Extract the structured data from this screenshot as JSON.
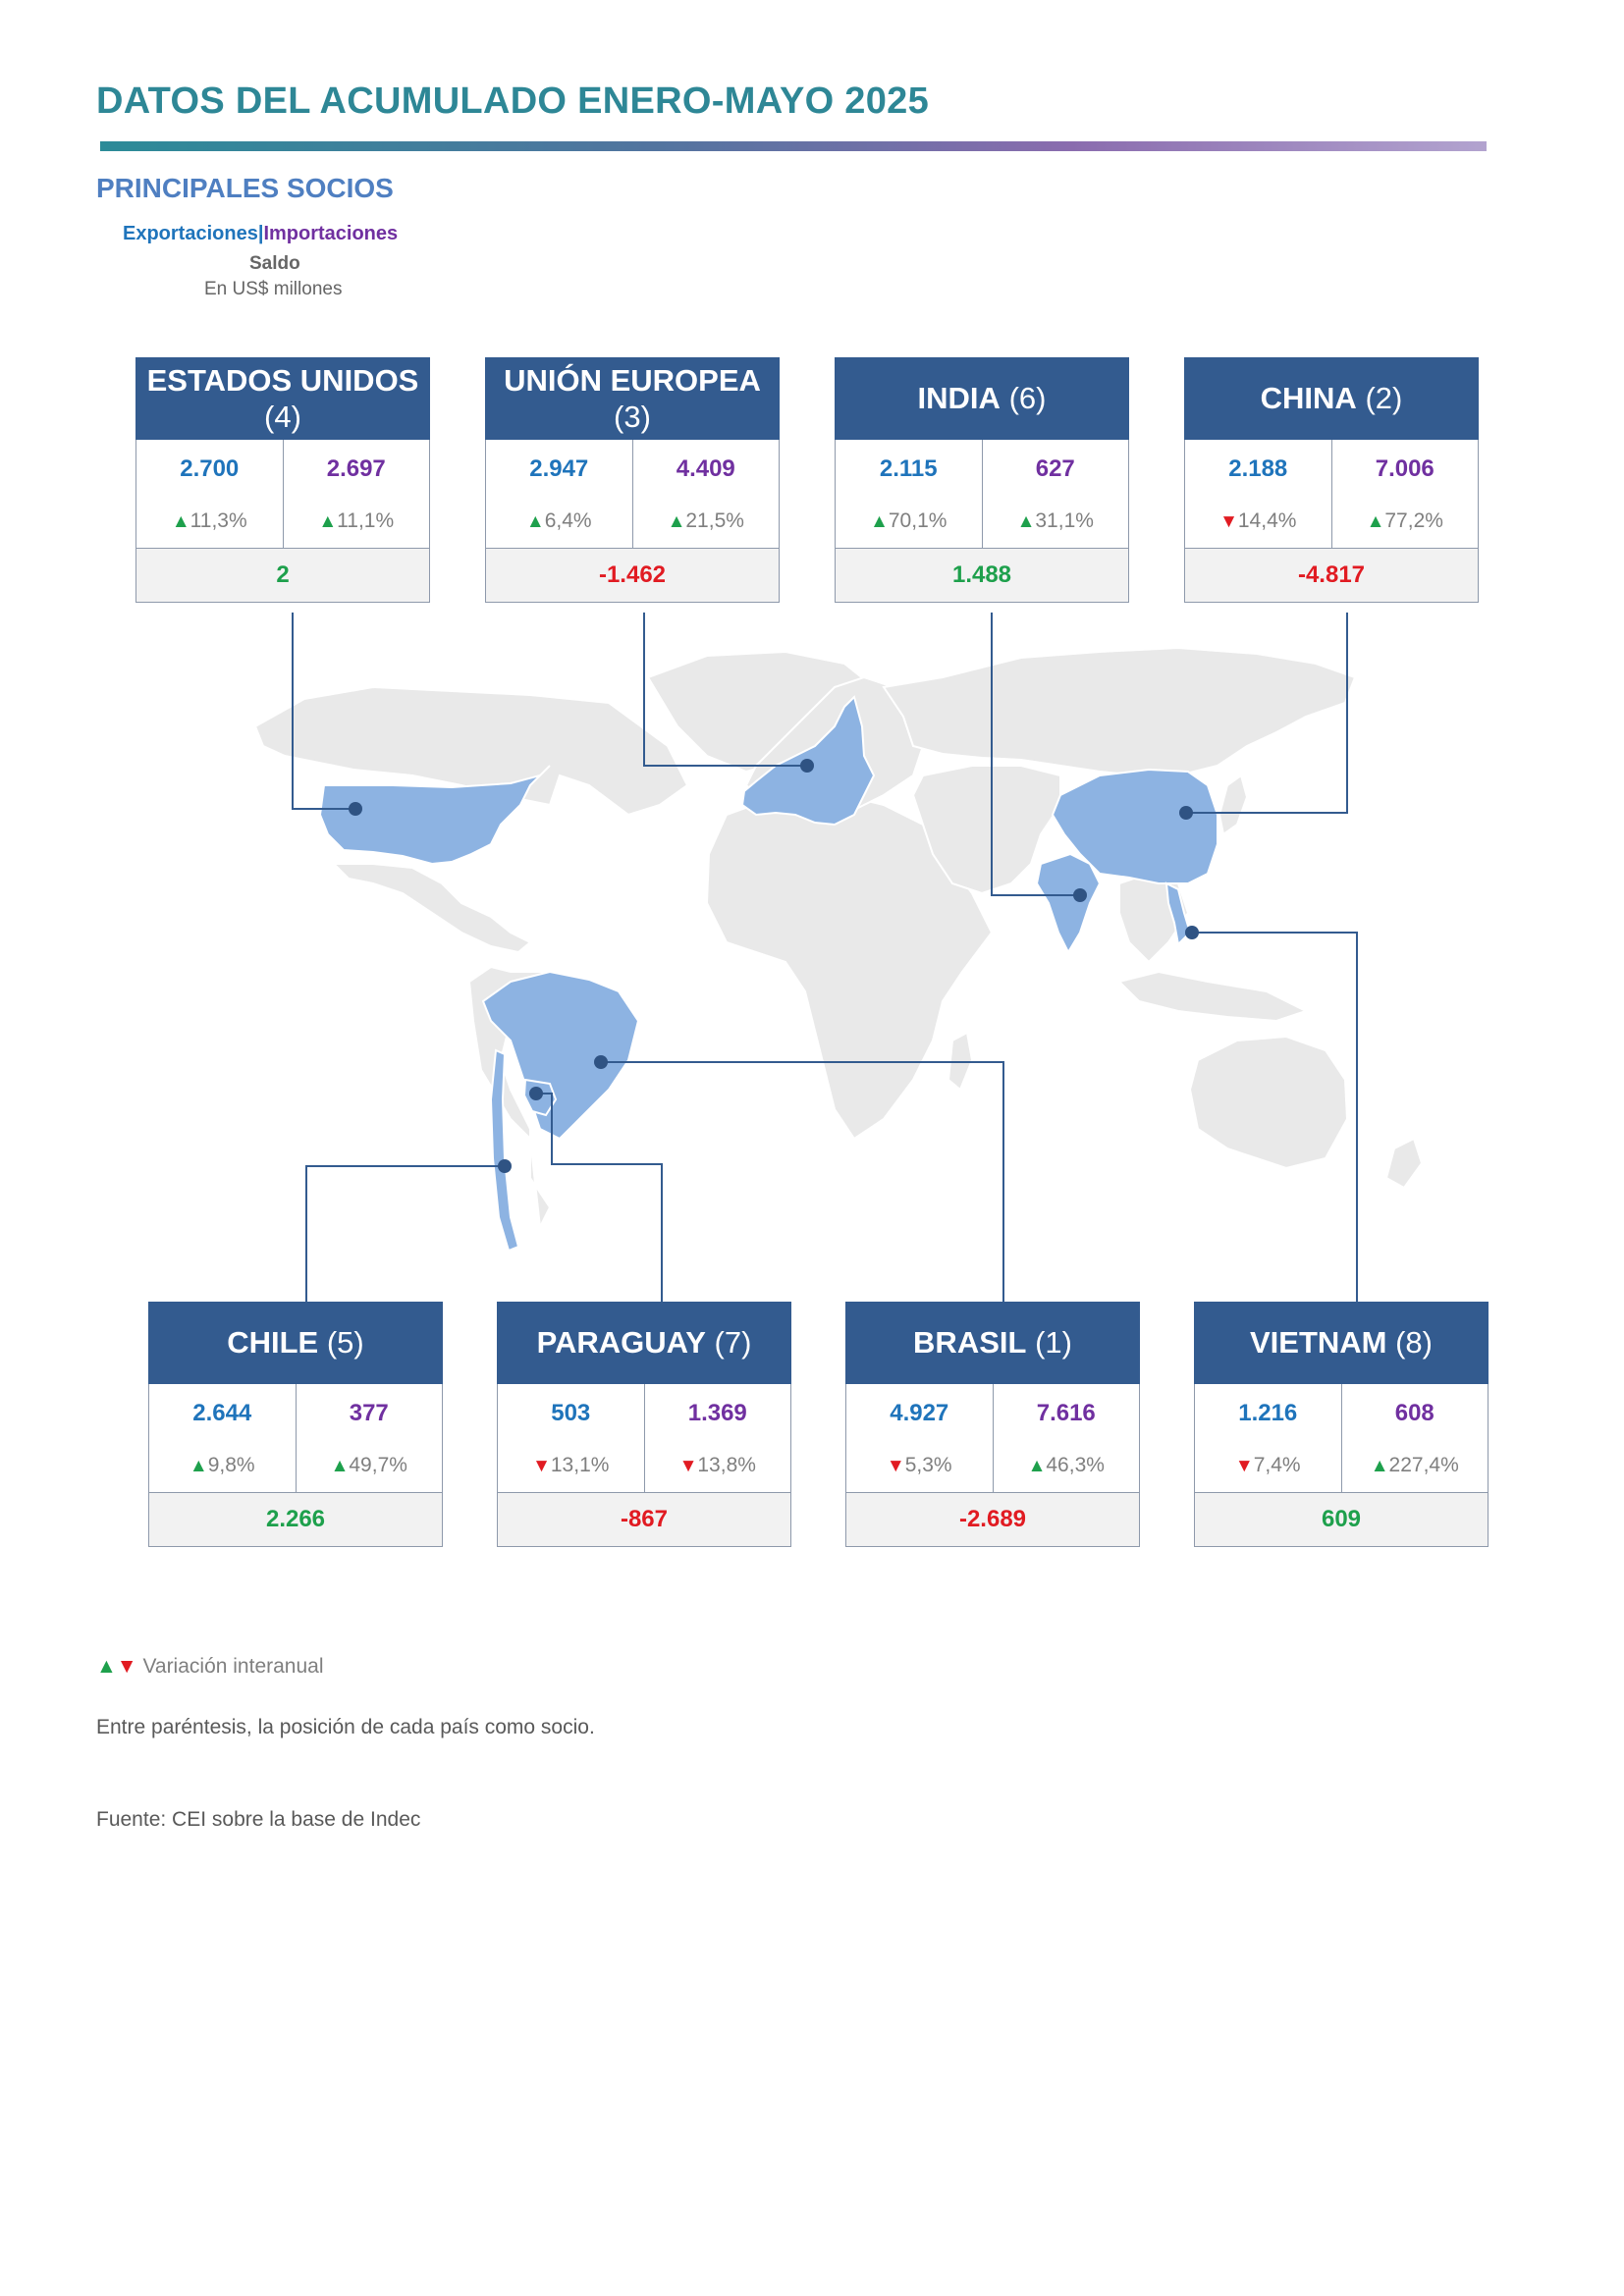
{
  "header": {
    "title": "DATOS DEL ACUMULADO ENERO-MAYO 2025",
    "subtitle": "PRINCIPALES SOCIOS"
  },
  "legend": {
    "exports": "Exportaciones",
    "separator": "|",
    "imports": "Importaciones",
    "balance": "Saldo",
    "units": "En US$ millones"
  },
  "partners": [
    {
      "name": "ESTADOS UNIDOS",
      "position": "(4)",
      "exports": "2.700",
      "imports": "2.697",
      "exports_var": "11,3%",
      "exports_dir": "up",
      "imports_var": "11,1%",
      "imports_dir": "up",
      "balance": "2",
      "balance_sign": "positive"
    },
    {
      "name": "UNIÓN EUROPEA",
      "position": "(3)",
      "exports": "2.947",
      "imports": "4.409",
      "exports_var": "6,4%",
      "exports_dir": "up",
      "imports_var": "21,5%",
      "imports_dir": "up",
      "balance": "-1.462",
      "balance_sign": "negative"
    },
    {
      "name": "INDIA",
      "position": "(6)",
      "exports": "2.115",
      "imports": "627",
      "exports_var": "70,1%",
      "exports_dir": "up",
      "imports_var": "31,1%",
      "imports_dir": "up",
      "balance": "1.488",
      "balance_sign": "positive"
    },
    {
      "name": "CHINA",
      "position": "(2)",
      "exports": "2.188",
      "imports": "7.006",
      "exports_var": "14,4%",
      "exports_dir": "down",
      "imports_var": "77,2%",
      "imports_dir": "up",
      "balance": "-4.817",
      "balance_sign": "negative"
    },
    {
      "name": "CHILE",
      "position": "(5)",
      "exports": "2.644",
      "imports": "377",
      "exports_var": "9,8%",
      "exports_dir": "up",
      "imports_var": "49,7%",
      "imports_dir": "up",
      "balance": "2.266",
      "balance_sign": "positive"
    },
    {
      "name": "PARAGUAY",
      "position": "(7)",
      "exports": "503",
      "imports": "1.369",
      "exports_var": "13,1%",
      "exports_dir": "down",
      "imports_var": "13,8%",
      "imports_dir": "down",
      "balance": "-867",
      "balance_sign": "negative"
    },
    {
      "name": "BRASIL",
      "position": "(1)",
      "exports": "4.927",
      "imports": "7.616",
      "exports_var": "5,3%",
      "exports_dir": "down",
      "imports_var": "46,3%",
      "imports_dir": "up",
      "balance": "-2.689",
      "balance_sign": "negative"
    },
    {
      "name": "VIETNAM",
      "position": "(8)",
      "exports": "1.216",
      "imports": "608",
      "exports_var": "7,4%",
      "exports_dir": "down",
      "imports_var": "227,4%",
      "imports_dir": "up",
      "balance": "609",
      "balance_sign": "positive"
    }
  ],
  "symbols": {
    "up": "▲",
    "down": "▼"
  },
  "notes": {
    "variation": "Variación interanual",
    "position": "Entre paréntesis, la posición de cada país como socio.",
    "source": "Fuente: CEI sobre la base de Indec"
  },
  "colors": {
    "exports": "#1f74bb",
    "imports": "#7030a0",
    "up": "#1ea04c",
    "down": "#e11b22",
    "card_header": "#335b8f",
    "map_land": "#e9e9e9",
    "map_highlight": "#8db3e2",
    "connector": "#335b8f"
  }
}
